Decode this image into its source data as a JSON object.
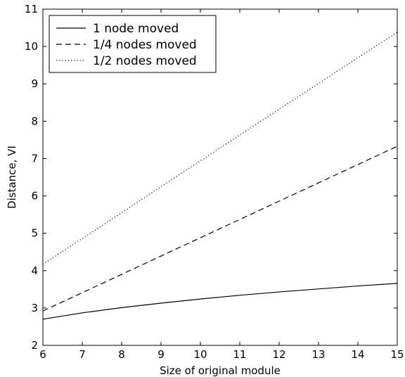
{
  "chart_data": {
    "type": "line",
    "title": "",
    "xlabel": "Size of original module",
    "ylabel": "Distance, VI",
    "xlim": [
      6,
      15
    ],
    "ylim": [
      2,
      11
    ],
    "xticks": [
      6,
      7,
      8,
      9,
      10,
      11,
      12,
      13,
      14,
      15
    ],
    "yticks": [
      2,
      3,
      4,
      5,
      6,
      7,
      8,
      9,
      10,
      11
    ],
    "grid": false,
    "legend_position": "top-left",
    "series": [
      {
        "name": "1 node moved",
        "line_style": "solid",
        "color": "#000000",
        "x": [
          6,
          7,
          8,
          9,
          10,
          11,
          12,
          13,
          14,
          15
        ],
        "y": [
          2.7,
          2.87,
          3.01,
          3.13,
          3.24,
          3.34,
          3.43,
          3.51,
          3.59,
          3.66
        ]
      },
      {
        "name": "1/4 nodes moved",
        "line_style": "dashed",
        "color": "#000000",
        "x": [
          6,
          7,
          8,
          9,
          10,
          11,
          12,
          13,
          14,
          15
        ],
        "y": [
          2.92,
          3.41,
          3.9,
          4.39,
          4.88,
          5.37,
          5.86,
          6.35,
          6.84,
          7.33
        ]
      },
      {
        "name": "1/2 nodes moved",
        "line_style": "dotted",
        "color": "#000000",
        "x": [
          6,
          7,
          8,
          9,
          10,
          11,
          12,
          13,
          14,
          15
        ],
        "y": [
          4.17,
          4.86,
          5.55,
          6.25,
          6.94,
          7.63,
          8.32,
          9.01,
          9.7,
          10.38
        ]
      }
    ]
  }
}
